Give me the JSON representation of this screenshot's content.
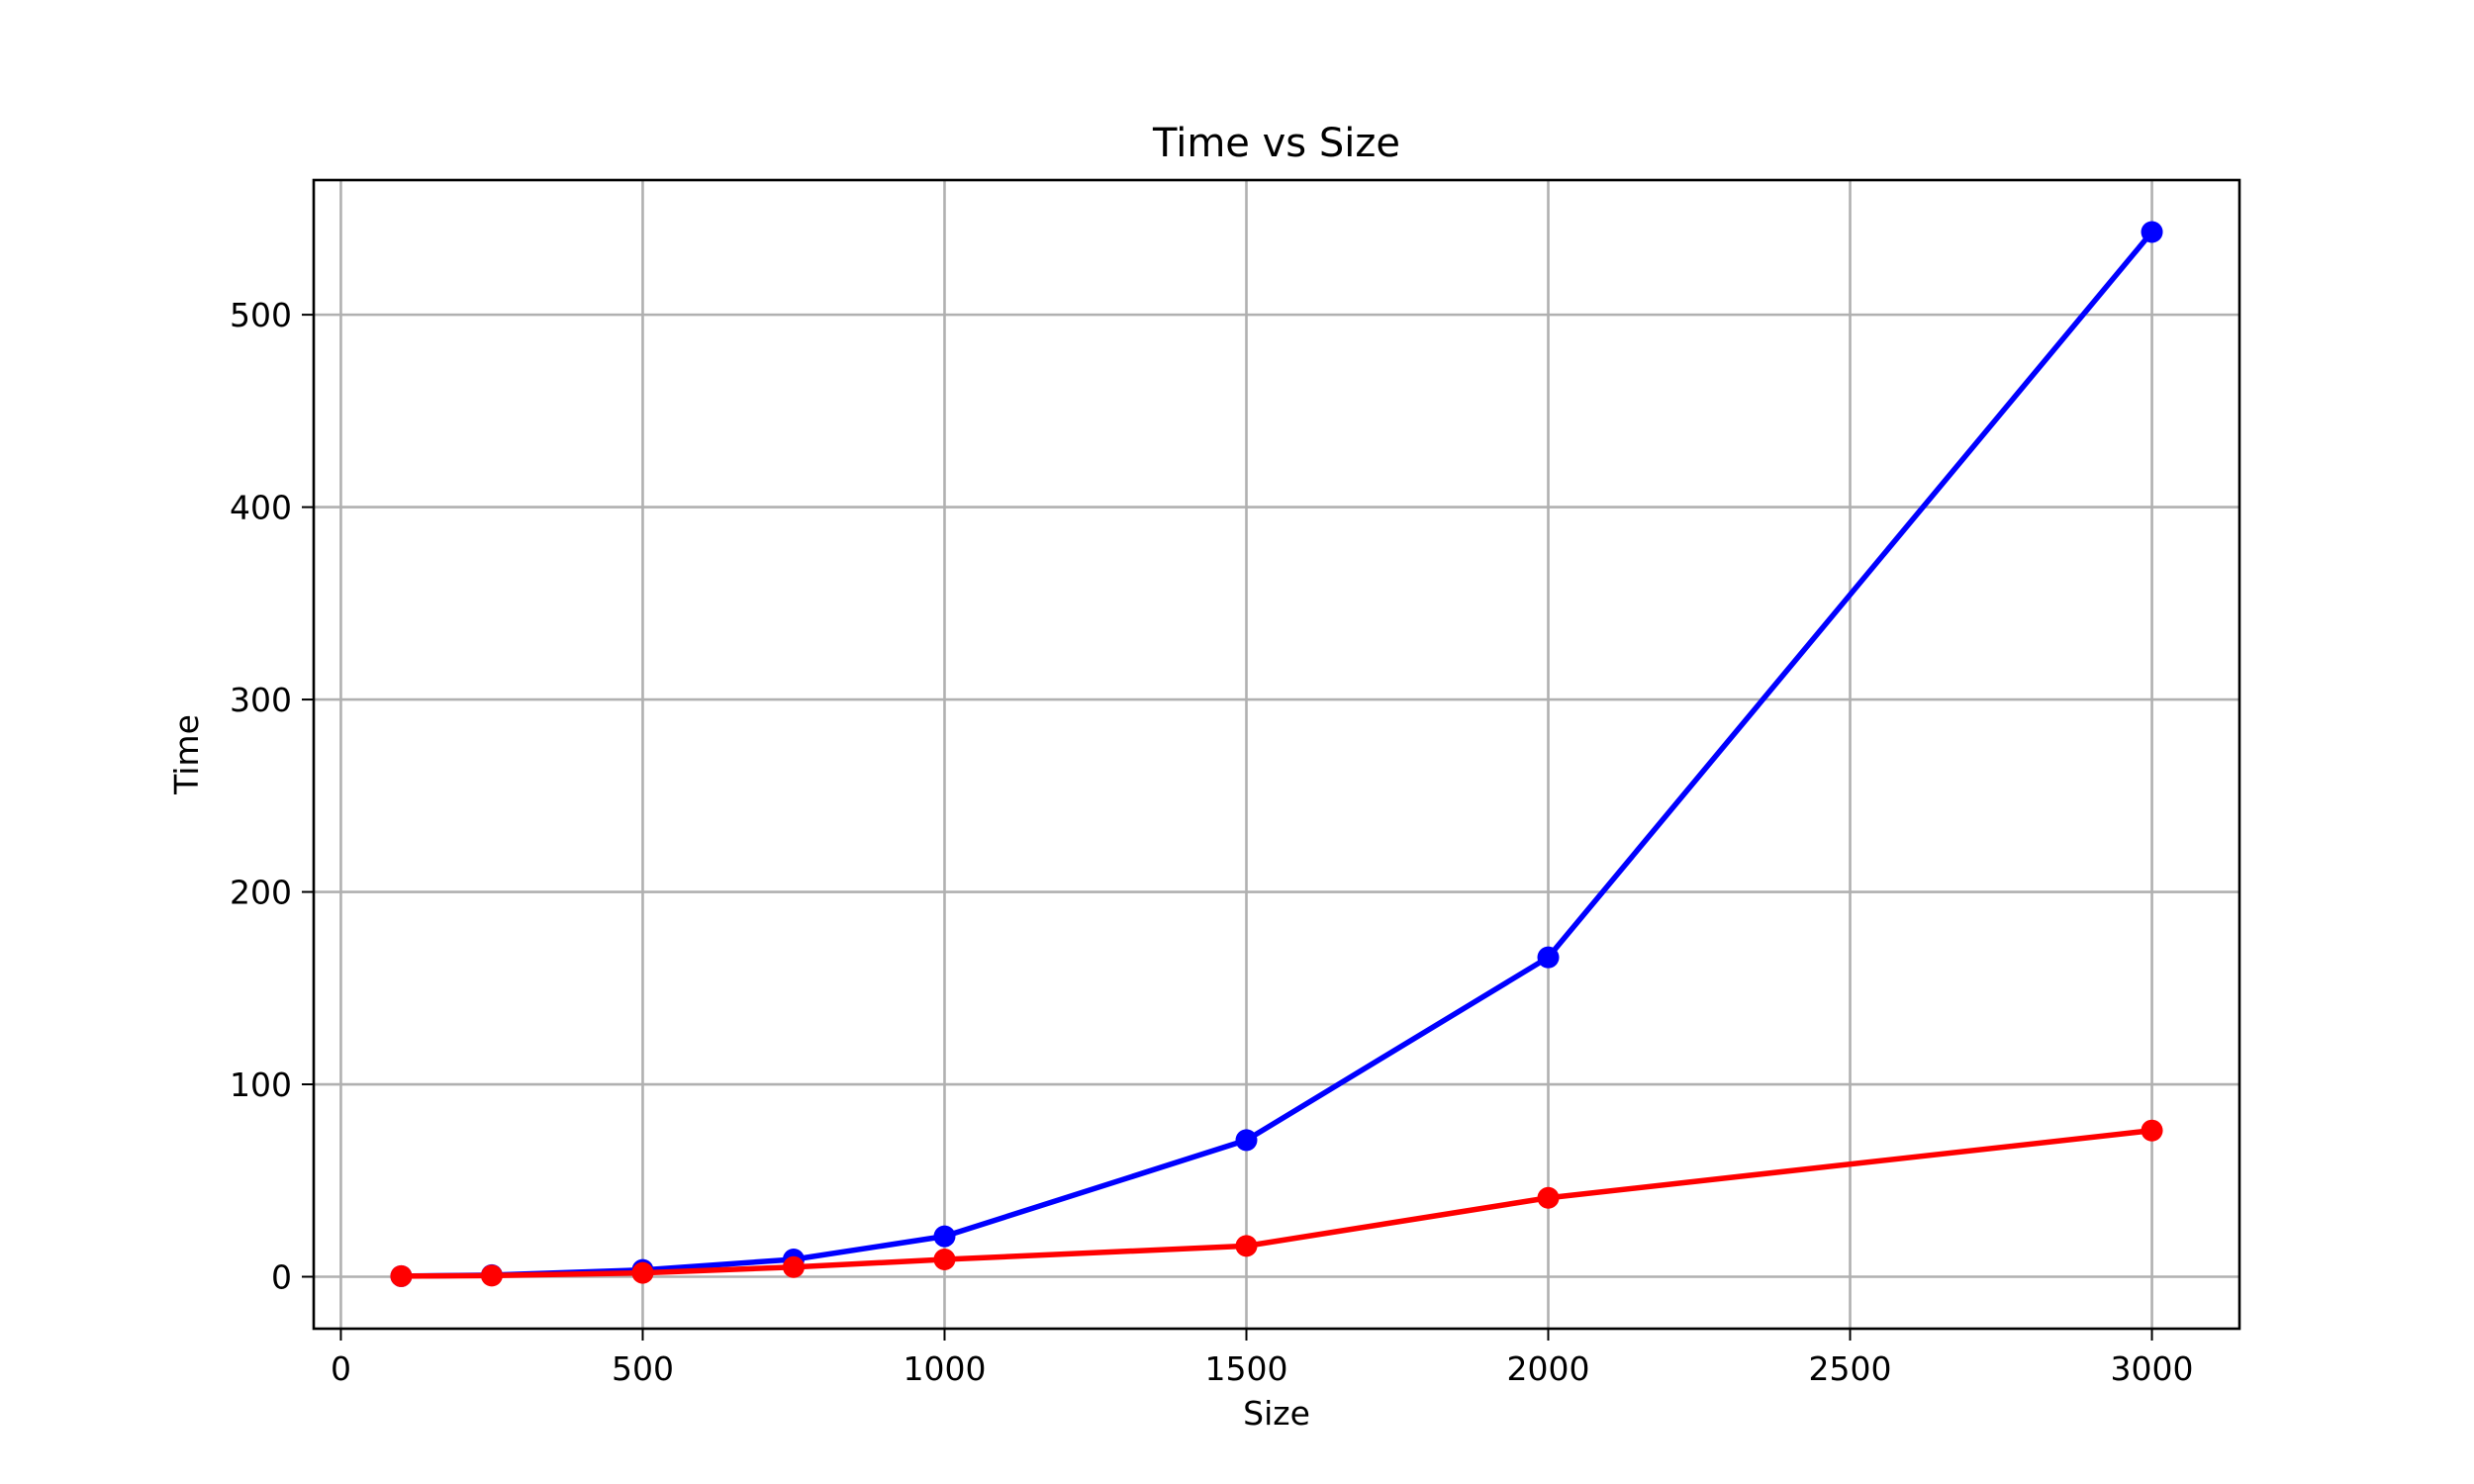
{
  "chart_data": {
    "type": "line",
    "title": "Time vs Size",
    "xlabel": "Size",
    "ylabel": "Time",
    "xlim": [
      -45,
      3145
    ],
    "ylim": [
      -27,
      570
    ],
    "xticks": [
      0,
      500,
      1000,
      1500,
      2000,
      2500,
      3000
    ],
    "yticks": [
      0,
      100,
      200,
      300,
      400,
      500
    ],
    "grid": true,
    "x": [
      100,
      250,
      500,
      750,
      1000,
      1500,
      2000,
      3000
    ],
    "series": [
      {
        "color": "#0000ff",
        "values": [
          0.3,
          0.8,
          3.5,
          9.0,
          21.0,
          71.0,
          166.0,
          543.0
        ]
      },
      {
        "color": "#ff0000",
        "values": [
          0.3,
          0.6,
          2.0,
          5.0,
          9.0,
          16.0,
          41.0,
          76.0
        ]
      }
    ]
  }
}
